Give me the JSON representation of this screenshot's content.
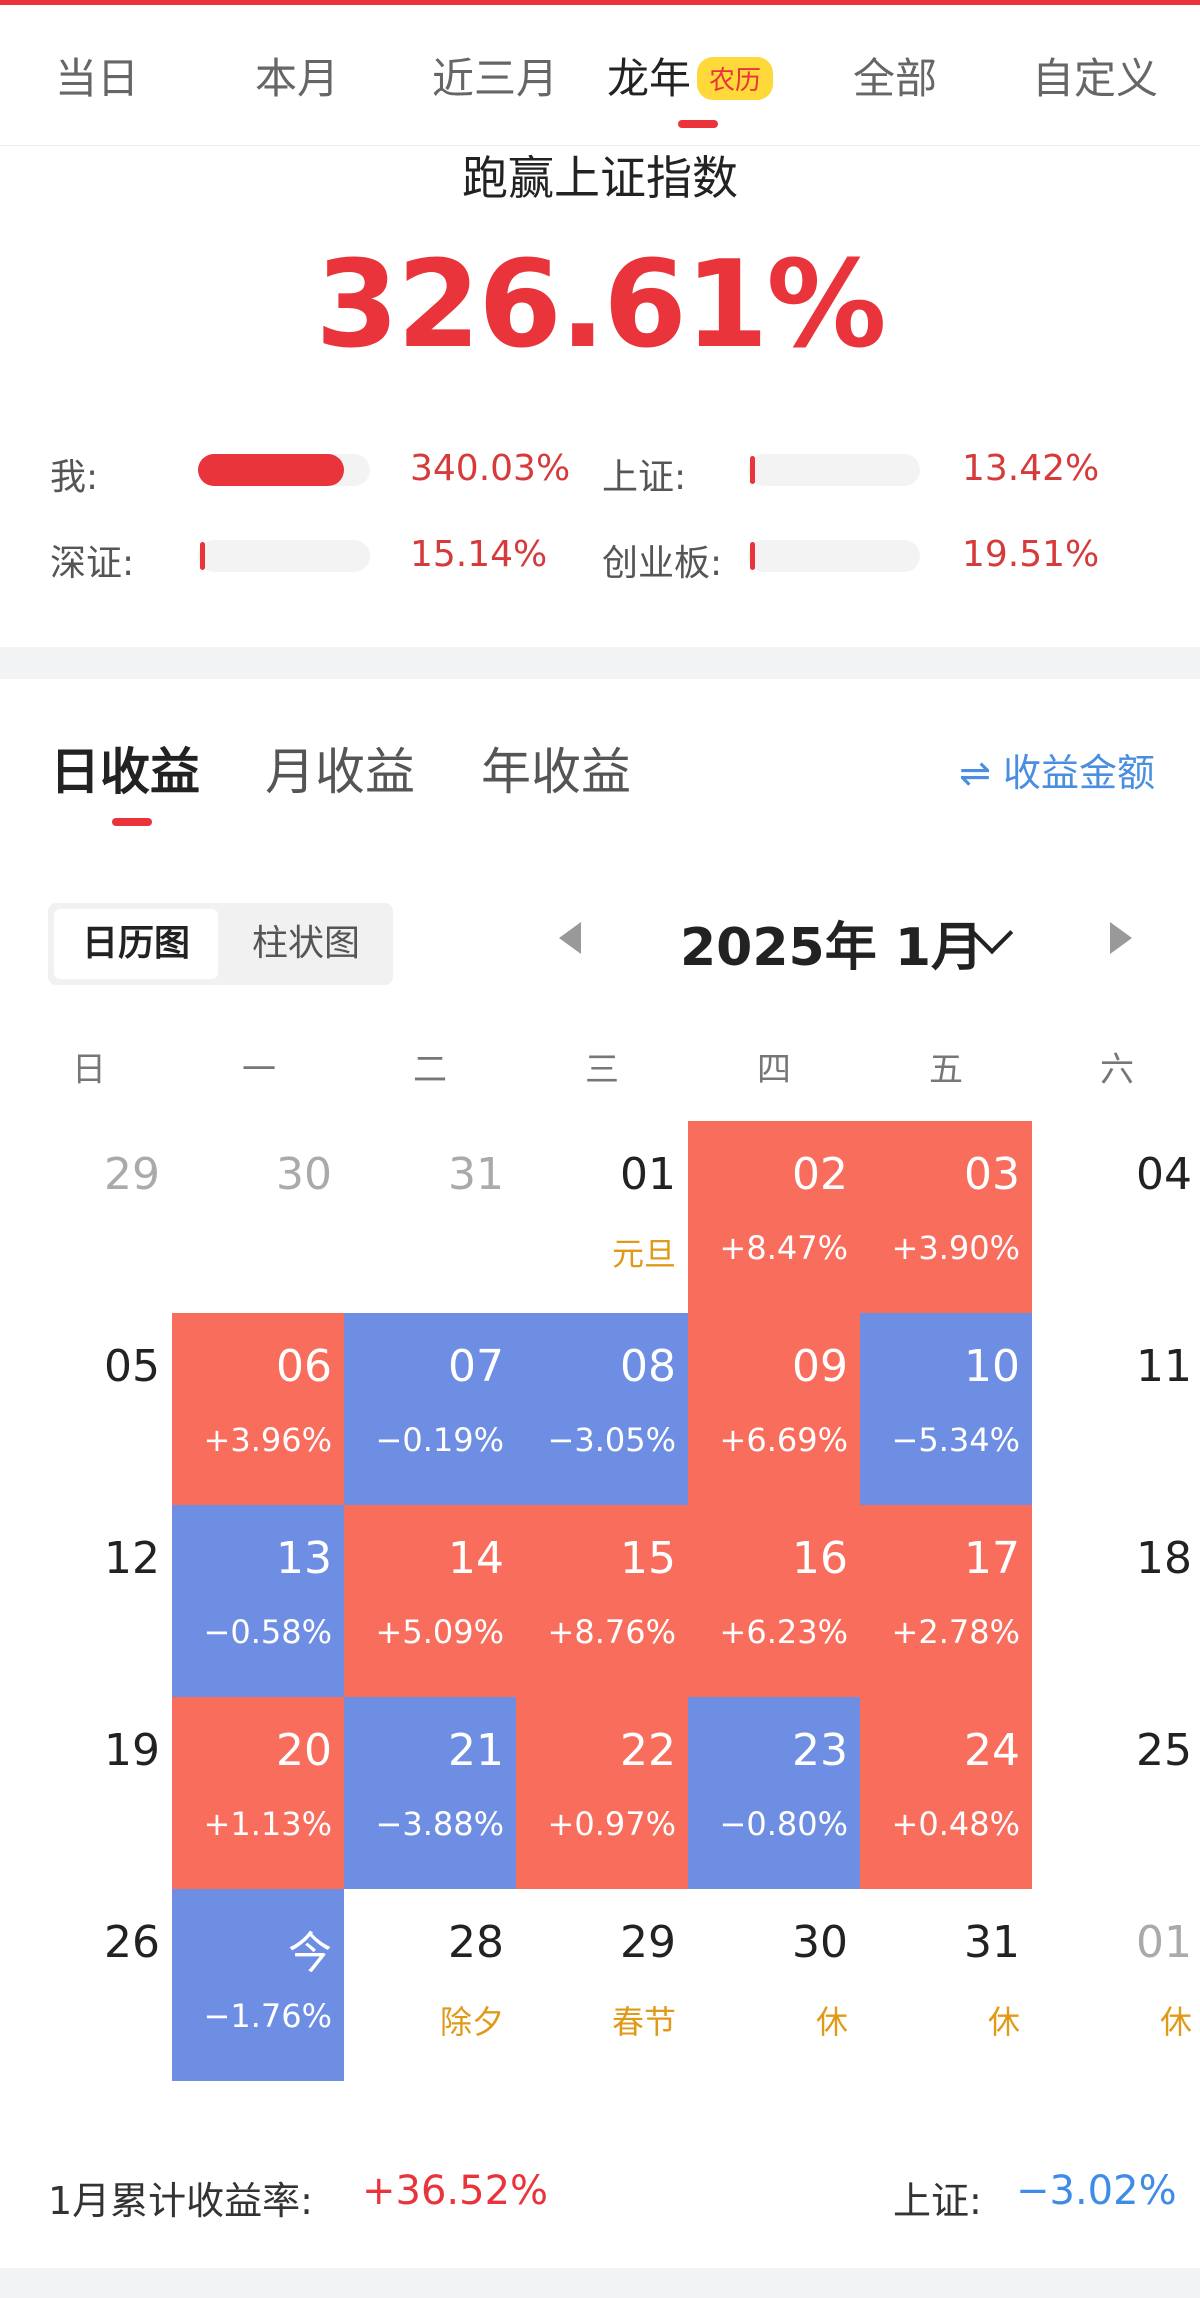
{
  "period_tabs": [
    {
      "label": "当日"
    },
    {
      "label": "本月"
    },
    {
      "label": "近三月"
    },
    {
      "label": "龙年",
      "badge": "农历",
      "active": true
    },
    {
      "label": "全部"
    },
    {
      "label": "自定义"
    }
  ],
  "beat": {
    "title": "跑赢上证指数",
    "value": "326.61%"
  },
  "comparisons": [
    {
      "label": "我:",
      "value": "340.03%",
      "level_percent": 340.03
    },
    {
      "label": "上证:",
      "value": "13.42%",
      "level_percent": 13.42
    },
    {
      "label": "深证:",
      "value": "15.14%",
      "level_percent": 15.14
    },
    {
      "label": "创业板:",
      "value": "19.51%",
      "level_percent": 19.51
    }
  ],
  "income_tabs": [
    {
      "label": "日收益",
      "active": true
    },
    {
      "label": "月收益"
    },
    {
      "label": "年收益"
    }
  ],
  "amount_switch": {
    "icon": "swap-arrows-icon",
    "label": "收益金额"
  },
  "view_toggle": [
    {
      "label": "日历图",
      "active": true
    },
    {
      "label": "柱状图"
    }
  ],
  "month_selector": {
    "title": "2025年 1月"
  },
  "weekdays": [
    "日",
    "一",
    "二",
    "三",
    "四",
    "五",
    "六"
  ],
  "calendar": [
    [
      {
        "day": "29",
        "state": "dim"
      },
      {
        "day": "30",
        "state": "dim"
      },
      {
        "day": "31",
        "state": "dim"
      },
      {
        "day": "01",
        "sub": "元旦",
        "sub_type": "holiday"
      },
      {
        "day": "02",
        "sub": "+8.47%",
        "state": "up"
      },
      {
        "day": "03",
        "sub": "+3.90%",
        "state": "up"
      },
      {
        "day": "04"
      }
    ],
    [
      {
        "day": "05"
      },
      {
        "day": "06",
        "sub": "+3.96%",
        "state": "up"
      },
      {
        "day": "07",
        "sub": "−0.19%",
        "state": "down"
      },
      {
        "day": "08",
        "sub": "−3.05%",
        "state": "down"
      },
      {
        "day": "09",
        "sub": "+6.69%",
        "state": "up"
      },
      {
        "day": "10",
        "sub": "−5.34%",
        "state": "down"
      },
      {
        "day": "11"
      }
    ],
    [
      {
        "day": "12"
      },
      {
        "day": "13",
        "sub": "−0.58%",
        "state": "down"
      },
      {
        "day": "14",
        "sub": "+5.09%",
        "state": "up"
      },
      {
        "day": "15",
        "sub": "+8.76%",
        "state": "up"
      },
      {
        "day": "16",
        "sub": "+6.23%",
        "state": "up"
      },
      {
        "day": "17",
        "sub": "+2.78%",
        "state": "up"
      },
      {
        "day": "18"
      }
    ],
    [
      {
        "day": "19"
      },
      {
        "day": "20",
        "sub": "+1.13%",
        "state": "up"
      },
      {
        "day": "21",
        "sub": "−3.88%",
        "state": "down"
      },
      {
        "day": "22",
        "sub": "+0.97%",
        "state": "up"
      },
      {
        "day": "23",
        "sub": "−0.80%",
        "state": "down"
      },
      {
        "day": "24",
        "sub": "+0.48%",
        "state": "up"
      },
      {
        "day": "25"
      }
    ],
    [
      {
        "day": "26"
      },
      {
        "day": "今",
        "sub": "−1.76%",
        "state": "down"
      },
      {
        "day": "28",
        "sub": "除夕",
        "sub_type": "holiday"
      },
      {
        "day": "29",
        "sub": "春节",
        "sub_type": "holiday"
      },
      {
        "day": "30",
        "sub": "休",
        "sub_type": "holiday"
      },
      {
        "day": "31",
        "sub": "休",
        "sub_type": "holiday"
      },
      {
        "day": "01",
        "sub": "休",
        "sub_type": "holiday",
        "state": "dim"
      }
    ]
  ],
  "summary": {
    "label": "1月累计收益率:",
    "value": "+36.52%",
    "index_label": "上证:",
    "index_value": "−3.02%"
  },
  "colors": {
    "accent": "#e8343a",
    "up": "#f86d5c",
    "down": "#6e8ee3",
    "holiday": "#e09a17",
    "link": "#4a8ee0"
  }
}
